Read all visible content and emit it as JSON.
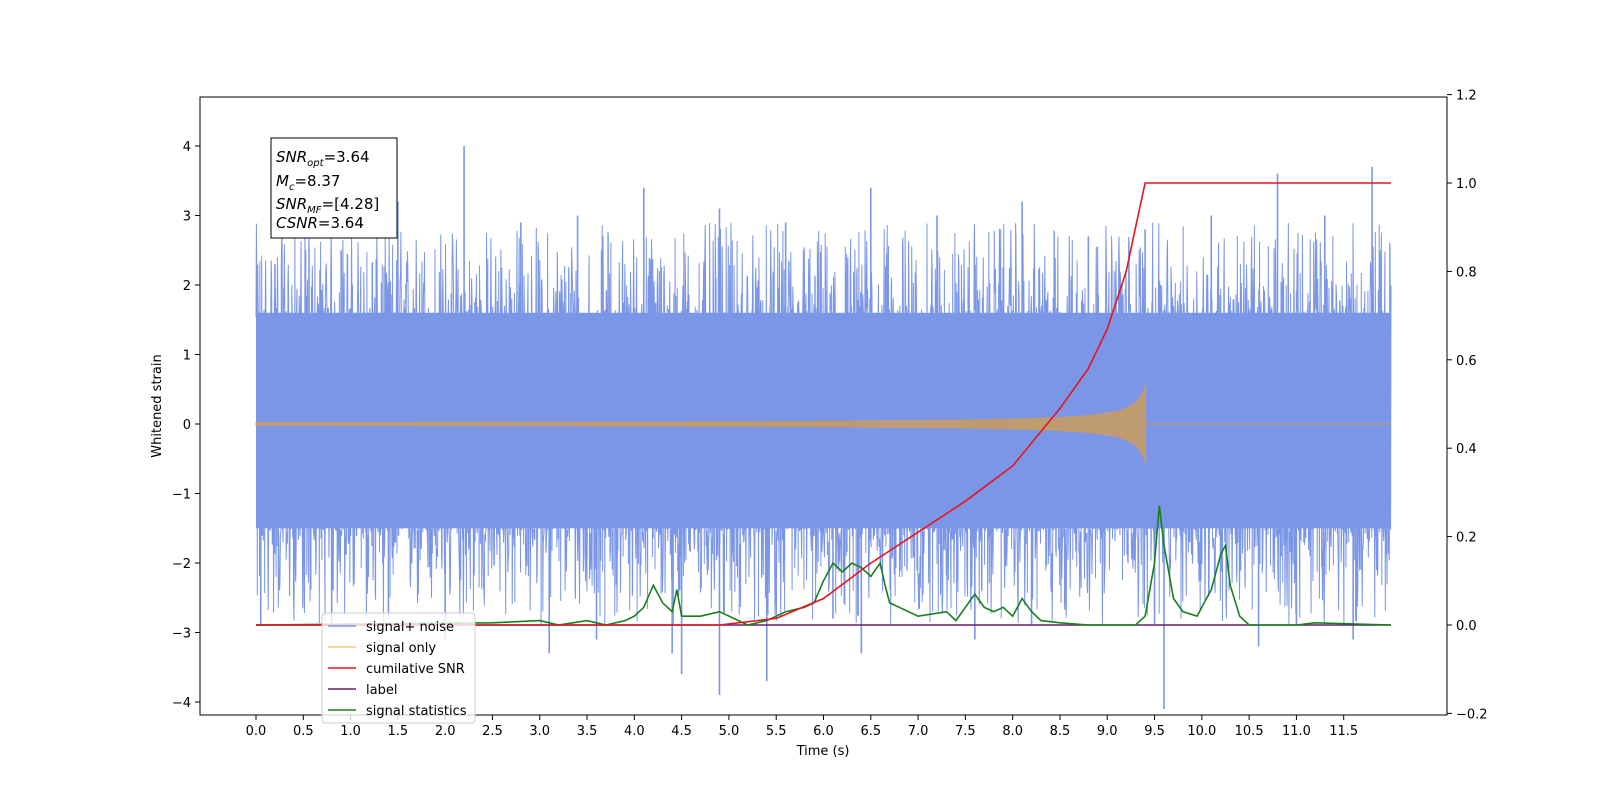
{
  "chart_data": {
    "type": "line",
    "xlabel": "Time (s)",
    "ylabel": "Whitened strain",
    "xlim": [
      -0.6,
      12.6
    ],
    "ylim": [
      -4.5,
      4.4
    ],
    "y2lim": [
      -0.2,
      1.2
    ],
    "x_ticks": [
      "0.0",
      "0.5",
      "1.0",
      "1.5",
      "2.0",
      "2.5",
      "3.0",
      "3.5",
      "4.0",
      "4.5",
      "5.0",
      "5.5",
      "6.0",
      "6.5",
      "7.0",
      "7.5",
      "8.0",
      "8.5",
      "9.0",
      "9.5",
      "10.0",
      "10.5",
      "11.0",
      "11.5"
    ],
    "y_ticks": [
      "4",
      "3",
      "2",
      "1",
      "0",
      "−1",
      "−2",
      "−3",
      "−4"
    ],
    "y2_ticks": [
      "1.2",
      "1.0",
      "0.8",
      "0.6",
      "0.4",
      "0.2",
      "0.0",
      "−0.2"
    ],
    "grid": false,
    "legend": {
      "placement": "lower-left",
      "entries": [
        {
          "label": "signal+ noise",
          "color": "#7b96e6"
        },
        {
          "label": "signal only",
          "color": "#f5c97a"
        },
        {
          "label": "cumilative SNR",
          "color": "#e8141c"
        },
        {
          "label": "label",
          "color": "#6b1e6e"
        },
        {
          "label": "signal statistics",
          "color": "#18801a"
        }
      ]
    },
    "info_box": {
      "lines": [
        {
          "sym": "SNR",
          "sub": "opt",
          "val": "=3.64"
        },
        {
          "sym": "M",
          "sub": "c",
          "val": "=8.37"
        },
        {
          "sym": "SNR",
          "sub": "MF",
          "val": "=[4.28]"
        },
        {
          "sym": "CSNR",
          "sub": "",
          "val": "=3.64"
        }
      ]
    },
    "noise_series": {
      "name": "signal+ noise",
      "x_range": [
        0.0,
        12.0
      ],
      "band_y": [
        -1.5,
        1.6
      ],
      "spikes_up": [
        [
          0.2,
          2.3
        ],
        [
          0.9,
          2.5
        ],
        [
          1.5,
          3.2
        ],
        [
          2.2,
          4.0
        ],
        [
          2.8,
          2.9
        ],
        [
          3.4,
          3.0
        ],
        [
          4.1,
          3.4
        ],
        [
          4.9,
          3.1
        ],
        [
          5.6,
          2.9
        ],
        [
          6.5,
          3.4
        ],
        [
          7.2,
          3.0
        ],
        [
          8.1,
          3.2
        ],
        [
          8.8,
          2.7
        ],
        [
          9.4,
          2.8
        ],
        [
          10.1,
          3.0
        ],
        [
          10.8,
          3.6
        ],
        [
          11.3,
          3.0
        ],
        [
          11.8,
          3.7
        ]
      ],
      "spikes_down": [
        [
          0.05,
          -2.9
        ],
        [
          0.8,
          -2.9
        ],
        [
          1.4,
          -2.8
        ],
        [
          2.0,
          -3.1
        ],
        [
          3.1,
          -3.3
        ],
        [
          3.6,
          -3.1
        ],
        [
          4.4,
          -3.3
        ],
        [
          4.5,
          -3.6
        ],
        [
          4.9,
          -3.9
        ],
        [
          5.4,
          -3.7
        ],
        [
          6.1,
          -2.8
        ],
        [
          6.4,
          -3.3
        ],
        [
          7.6,
          -3.1
        ],
        [
          8.2,
          -2.9
        ],
        [
          9.5,
          -2.9
        ],
        [
          9.6,
          -4.1
        ],
        [
          10.6,
          -3.2
        ],
        [
          11.0,
          -2.9
        ],
        [
          11.6,
          -3.1
        ]
      ]
    },
    "signal_series": {
      "name": "signal only",
      "x_range": [
        0.0,
        9.4
      ],
      "peak_amplitude": 0.55
    },
    "cumulative_snr": {
      "name": "cumilative SNR",
      "axis": "right",
      "x": [
        0.0,
        4.0,
        4.9,
        5.5,
        6.0,
        6.5,
        7.0,
        7.5,
        8.0,
        8.5,
        8.8,
        9.0,
        9.2,
        9.3,
        9.4,
        12.0
      ],
      "y": [
        0.0,
        0.0,
        0.0,
        0.015,
        0.06,
        0.14,
        0.21,
        0.28,
        0.36,
        0.49,
        0.58,
        0.67,
        0.8,
        0.9,
        1.0,
        1.0
      ]
    },
    "label_series": {
      "name": "label",
      "axis": "right",
      "x": [
        0.0,
        12.0
      ],
      "y": [
        0.0,
        0.0
      ]
    },
    "signal_statistics": {
      "name": "signal statistics",
      "axis": "right",
      "x": [
        0.0,
        2.5,
        3.0,
        3.2,
        3.5,
        3.7,
        3.9,
        4.0,
        4.1,
        4.2,
        4.3,
        4.4,
        4.45,
        4.5,
        4.7,
        4.9,
        5.2,
        5.4,
        5.6,
        5.8,
        5.9,
        6.0,
        6.1,
        6.2,
        6.3,
        6.4,
        6.5,
        6.6,
        6.65,
        6.7,
        6.8,
        7.0,
        7.3,
        7.4,
        7.5,
        7.6,
        7.7,
        7.8,
        7.9,
        8.0,
        8.1,
        8.2,
        8.3,
        8.5,
        8.8,
        9.0,
        9.3,
        9.4,
        9.5,
        9.55,
        9.6,
        9.7,
        9.8,
        9.95,
        10.0,
        10.1,
        10.2,
        10.25,
        10.3,
        10.4,
        10.5,
        11.0,
        11.2,
        12.0
      ],
      "y": [
        0.0,
        0.005,
        0.01,
        0.0,
        0.01,
        0.0,
        0.01,
        0.02,
        0.04,
        0.09,
        0.05,
        0.03,
        0.08,
        0.02,
        0.02,
        0.03,
        0.0,
        0.01,
        0.03,
        0.04,
        0.05,
        0.1,
        0.14,
        0.12,
        0.14,
        0.13,
        0.11,
        0.14,
        0.09,
        0.05,
        0.04,
        0.02,
        0.03,
        0.01,
        0.04,
        0.07,
        0.04,
        0.03,
        0.04,
        0.02,
        0.06,
        0.03,
        0.01,
        0.005,
        0.0,
        0.0,
        0.0,
        0.02,
        0.14,
        0.27,
        0.18,
        0.06,
        0.03,
        0.02,
        0.04,
        0.08,
        0.16,
        0.18,
        0.09,
        0.02,
        0.0,
        0.0,
        0.005,
        0.0
      ]
    }
  }
}
